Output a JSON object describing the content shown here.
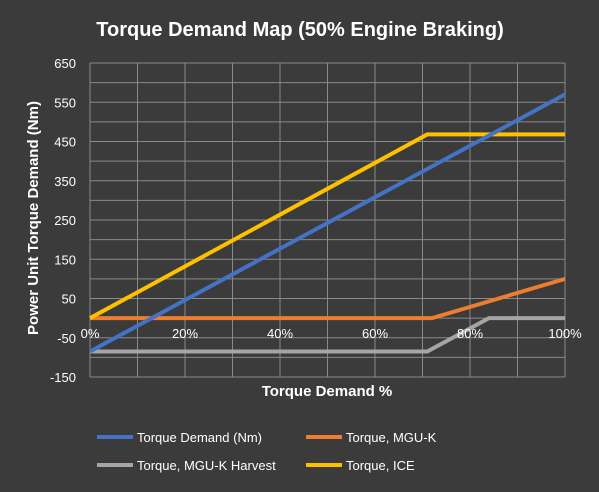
{
  "chart_data": {
    "type": "line",
    "title": "Torque Demand Map (50% Engine Braking)",
    "xlabel": "Torque Demand %",
    "ylabel": "Power Unit Torque Demand (Nm)",
    "xlim": [
      0,
      100
    ],
    "ylim": [
      -150,
      650
    ],
    "x_ticks": [
      {
        "value": 0,
        "label": "0%"
      },
      {
        "value": 20,
        "label": "20%"
      },
      {
        "value": 40,
        "label": "40%"
      },
      {
        "value": 60,
        "label": "60%"
      },
      {
        "value": 80,
        "label": "80%"
      },
      {
        "value": 100,
        "label": "100%"
      }
    ],
    "y_ticks": [
      {
        "value": 650,
        "label": "650"
      },
      {
        "value": 550,
        "label": "550"
      },
      {
        "value": 450,
        "label": "450"
      },
      {
        "value": 350,
        "label": "350"
      },
      {
        "value": 250,
        "label": "250"
      },
      {
        "value": 150,
        "label": "150"
      },
      {
        "value": 50,
        "label": "50"
      },
      {
        "value": -50,
        "label": "-50"
      },
      {
        "value": -150,
        "label": "-150"
      }
    ],
    "grid": true,
    "legend_position": "bottom",
    "series": [
      {
        "name": "Torque Demand (Nm)",
        "color": "#4472c4",
        "x": [
          0,
          100
        ],
        "y": [
          -85,
          570
        ]
      },
      {
        "name": "Torque, MGU-K",
        "color": "#ed7d31",
        "x": [
          0,
          72,
          100
        ],
        "y": [
          0,
          0,
          100
        ]
      },
      {
        "name": "Torque, MGU-K Harvest",
        "color": "#a5a5a5",
        "x": [
          0,
          71,
          84,
          100
        ],
        "y": [
          -85,
          -85,
          0,
          0
        ]
      },
      {
        "name": "Torque, ICE",
        "color": "#ffc000",
        "x": [
          0,
          71,
          100
        ],
        "y": [
          0,
          468,
          468
        ]
      }
    ]
  }
}
